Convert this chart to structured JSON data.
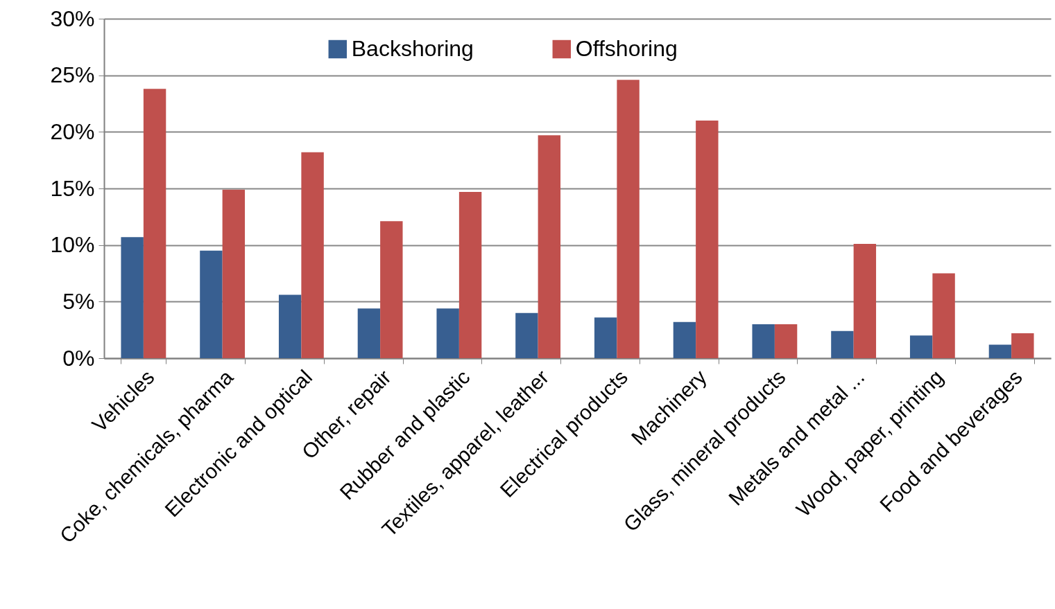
{
  "chart_data": {
    "type": "bar",
    "categories": [
      "Vehicles",
      "Coke, chemicals, pharma",
      "Electronic and optical",
      "Other, repair",
      "Rubber and plastic",
      "Textiles, apparel, leather",
      "Electrical products",
      "Machinery",
      "Glass, mineral products",
      "Metals and metal ...",
      "Wood, paper, printing",
      "Food and beverages"
    ],
    "series": [
      {
        "name": "Backshoring",
        "color": "#385f91",
        "values": [
          10.7,
          9.5,
          5.6,
          4.4,
          4.4,
          4.0,
          3.6,
          3.2,
          3.0,
          2.4,
          2.0,
          1.2
        ]
      },
      {
        "name": "Offshoring",
        "color": "#c0504d",
        "values": [
          23.8,
          14.9,
          18.2,
          12.1,
          14.7,
          19.7,
          24.6,
          21.0,
          3.0,
          10.1,
          7.5,
          2.2
        ]
      }
    ],
    "ylim": [
      0,
      30
    ],
    "yticks": [
      {
        "value": 0,
        "label": "0%"
      },
      {
        "value": 5,
        "label": "5%"
      },
      {
        "value": 10,
        "label": "10%"
      },
      {
        "value": 15,
        "label": "15%"
      },
      {
        "value": 20,
        "label": "20%"
      },
      {
        "value": 25,
        "label": "25%"
      },
      {
        "value": 30,
        "label": "30%"
      }
    ],
    "grid": "y",
    "legend": "top"
  }
}
